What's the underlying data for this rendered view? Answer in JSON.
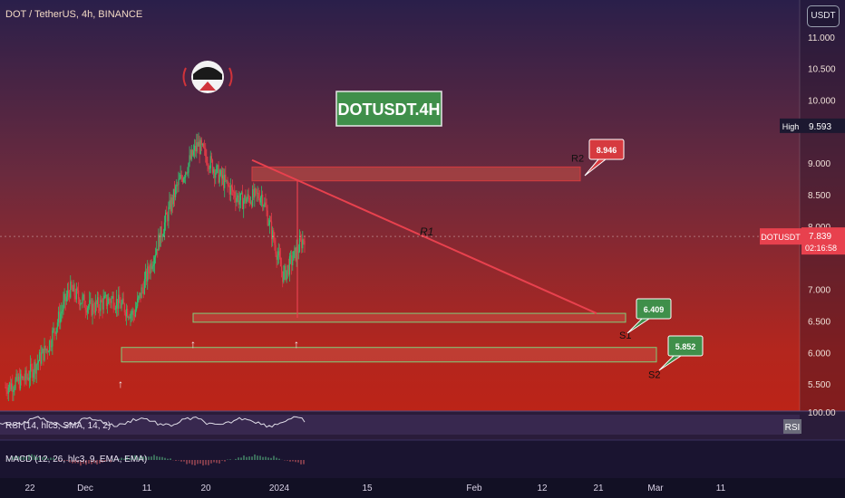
{
  "header": {
    "symbol_line": "DOT / TetherUS, 4h, BINANCE",
    "currency_button": "USDT"
  },
  "watermark": "DOTUSDT.4H",
  "colors": {
    "accent_red": "#e8414e",
    "zone_fill": "#c0473f",
    "support_green": "#3f8f4a",
    "resistance_red": "#d63a3f",
    "candle_up": "#2fbf71",
    "candle_down": "#e23b48"
  },
  "chart_data": {
    "type": "candlestick",
    "title": "DOT / TetherUS, 4h, BINANCE",
    "ylim": [
      5.1,
      11.5
    ],
    "y_ticks": [
      "11.000",
      "10.500",
      "10.000",
      "9.000",
      "8.500",
      "8.000",
      "7.000",
      "6.500",
      "6.000",
      "5.500"
    ],
    "x_ticks": [
      "22",
      "Dec",
      "11",
      "20",
      "2024",
      "15",
      "Feb",
      "12",
      "21",
      "Mar",
      "11"
    ],
    "approx_price_path": [
      {
        "label": "Nov 19",
        "close": 5.45
      },
      {
        "label": "Dec 01",
        "close": 5.6
      },
      {
        "label": "Dec 06",
        "close": 6.1
      },
      {
        "label": "Dec 09",
        "close": 7.0
      },
      {
        "label": "Dec 12",
        "close": 6.7
      },
      {
        "label": "Dec 15",
        "close": 6.85
      },
      {
        "label": "Dec 18",
        "close": 6.6
      },
      {
        "label": "Dec 21",
        "close": 7.6
      },
      {
        "label": "Dec 23",
        "close": 8.6
      },
      {
        "label": "Dec 26",
        "close": 9.3
      },
      {
        "label": "Dec 28",
        "close": 8.8
      },
      {
        "label": "Dec 31",
        "close": 8.4
      },
      {
        "label": "Jan 02",
        "close": 8.5
      },
      {
        "label": "Jan 03",
        "close": 7.2
      },
      {
        "label": "Jan 04",
        "close": 7.84
      }
    ],
    "levels": [
      {
        "name": "R2",
        "value": "8.946",
        "low": 8.72,
        "high": 8.94
      },
      {
        "name": "S1",
        "value": "6.409",
        "low": 6.48,
        "high": 6.62
      },
      {
        "name": "S2",
        "value": "5.852",
        "low": 5.85,
        "high": 6.08
      }
    ],
    "trendline": {
      "name": "R1",
      "from": 9.05,
      "to": 6.62
    },
    "high": {
      "label": "High",
      "value": "9.593"
    },
    "current": {
      "label": "DOTUSDT",
      "value": "7.839",
      "countdown": "02:16:58"
    },
    "arrows": [
      "↑",
      "↑",
      "↑"
    ]
  },
  "rsi": {
    "label": "RSI (14, hlc3, SMA, 14, 2)",
    "axis_top": "100.00",
    "tag": "RSI"
  },
  "macd": {
    "label": "MACD (12, 26, hlc3, 9, EMA, EMA)"
  }
}
